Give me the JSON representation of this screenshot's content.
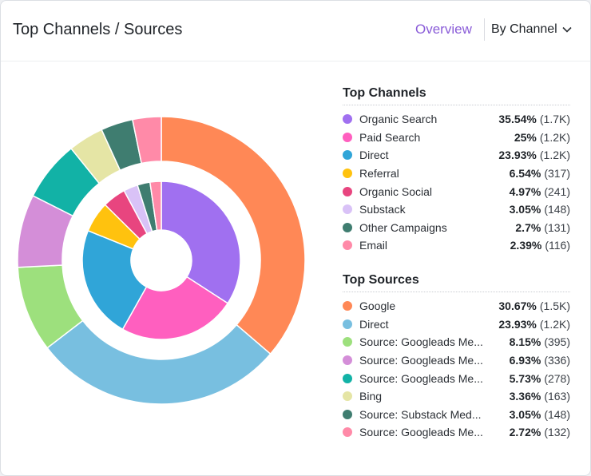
{
  "header": {
    "title": "Top Channels / Sources",
    "overview_label": "Overview",
    "dropdown_label": "By Channel"
  },
  "legend": {
    "channels_heading": "Top Channels",
    "sources_heading": "Top Sources"
  },
  "chart_data": {
    "type": "pie",
    "variant": "nested-donut",
    "title": "",
    "inner_ring": {
      "name": "Top Channels",
      "series": [
        {
          "name": "Organic Search",
          "label": "Organic Search",
          "value": 35.54,
          "value_label": "35.54%",
          "count": "(1.7K)",
          "color": "#a070f0"
        },
        {
          "name": "Paid Search",
          "label": "Paid Search",
          "value": 25,
          "value_label": "25%",
          "count": "(1.2K)",
          "color": "#ff5fbf"
        },
        {
          "name": "Direct",
          "label": "Direct",
          "value": 23.93,
          "value_label": "23.93%",
          "count": "(1.2K)",
          "color": "#30a5d8"
        },
        {
          "name": "Referral",
          "label": "Referral",
          "value": 6.54,
          "value_label": "6.54%",
          "count": "(317)",
          "color": "#ffc20e"
        },
        {
          "name": "Organic Social",
          "label": "Organic Social",
          "value": 4.97,
          "value_label": "4.97%",
          "count": "(241)",
          "color": "#e8457f"
        },
        {
          "name": "Substack",
          "label": "Substack",
          "value": 3.05,
          "value_label": "3.05%",
          "count": "(148)",
          "color": "#d9c2f7"
        },
        {
          "name": "Other Campaigns",
          "label": "Other Campaigns",
          "value": 2.7,
          "value_label": "2.7%",
          "count": "(131)",
          "color": "#3f7d70"
        },
        {
          "name": "Email",
          "label": "Email",
          "value": 2.39,
          "value_label": "2.39%",
          "count": "(116)",
          "color": "#ff8aa8"
        }
      ]
    },
    "outer_ring": {
      "name": "Top Sources",
      "series": [
        {
          "name": "Google",
          "label": "Google",
          "value": 30.67,
          "value_label": "30.67%",
          "count": "(1.5K)",
          "color": "#ff8856"
        },
        {
          "name": "Direct",
          "label": "Direct",
          "value": 23.93,
          "value_label": "23.93%",
          "count": "(1.2K)",
          "color": "#78bfe0"
        },
        {
          "name": "Source: Googleads Me...",
          "label": "Source: Googleads Me...",
          "value": 8.15,
          "value_label": "8.15%",
          "count": "(395)",
          "color": "#9de07d"
        },
        {
          "name": "Source: Googleads Me...",
          "label": "Source: Googleads Me...",
          "value": 6.93,
          "value_label": "6.93%",
          "count": "(336)",
          "color": "#d48ed8"
        },
        {
          "name": "Source: Googleads Me...",
          "label": "Source: Googleads Me...",
          "value": 5.73,
          "value_label": "5.73%",
          "count": "(278)",
          "color": "#12b2a6"
        },
        {
          "name": "Bing",
          "label": "Bing",
          "value": 3.36,
          "value_label": "3.36%",
          "count": "(163)",
          "color": "#e5e5a5"
        },
        {
          "name": "Source: Substack Med...",
          "label": "Source: Substack Med...",
          "value": 3.05,
          "value_label": "3.05%",
          "count": "(148)",
          "color": "#3f7d70"
        },
        {
          "name": "Source: Googleads Me...",
          "label": "Source: Googleads Me...",
          "value": 2.72,
          "value_label": "2.72%",
          "count": "(132)",
          "color": "#ff8aa8"
        }
      ]
    }
  }
}
